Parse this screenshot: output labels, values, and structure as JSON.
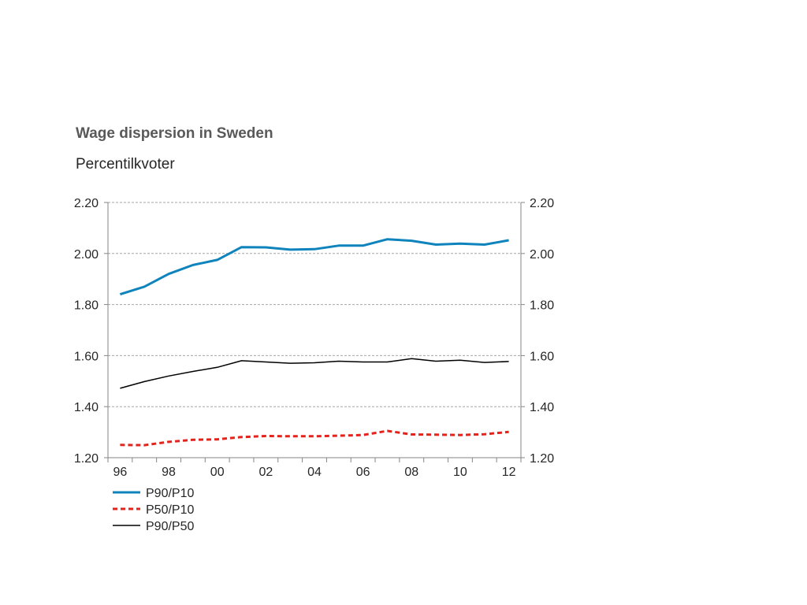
{
  "chart_data": {
    "type": "line",
    "title": "Wage dispersion in  Sweden",
    "subtitle": "Percentilkvoter",
    "xlabel": "",
    "ylabel": "",
    "ylim": [
      1.2,
      2.2
    ],
    "yticks": [
      "1.20",
      "1.40",
      "1.60",
      "1.80",
      "2.00",
      "2.20"
    ],
    "y_axes": "left and right",
    "grid": "horizontal dashed",
    "legend": "bottom-left",
    "x": [
      "96",
      "97",
      "98",
      "99",
      "00",
      "01",
      "02",
      "03",
      "04",
      "05",
      "06",
      "07",
      "08",
      "09",
      "10",
      "11",
      "12"
    ],
    "xtick_labels": [
      "96",
      "98",
      "00",
      "02",
      "04",
      "06",
      "08",
      "10",
      "12"
    ],
    "series": [
      {
        "name": "P90/P10",
        "color": "#0F84BC",
        "style": "solid-thick",
        "values": [
          1.84,
          1.87,
          1.92,
          1.955,
          1.975,
          2.025,
          2.024,
          2.015,
          2.017,
          2.031,
          2.031,
          2.056,
          2.05,
          2.035,
          2.039,
          2.035,
          2.052
        ]
      },
      {
        "name": "P50/P10",
        "color": "#E3231C",
        "style": "dashed",
        "values": [
          1.25,
          1.249,
          1.262,
          1.27,
          1.272,
          1.281,
          1.285,
          1.284,
          1.284,
          1.286,
          1.289,
          1.305,
          1.291,
          1.29,
          1.289,
          1.292,
          1.301
        ]
      },
      {
        "name": "P90/P50",
        "color": "#000000",
        "style": "solid-thin",
        "values": [
          1.472,
          1.498,
          1.52,
          1.538,
          1.554,
          1.58,
          1.575,
          1.57,
          1.572,
          1.578,
          1.575,
          1.575,
          1.588,
          1.578,
          1.582,
          1.573,
          1.577
        ]
      }
    ]
  }
}
